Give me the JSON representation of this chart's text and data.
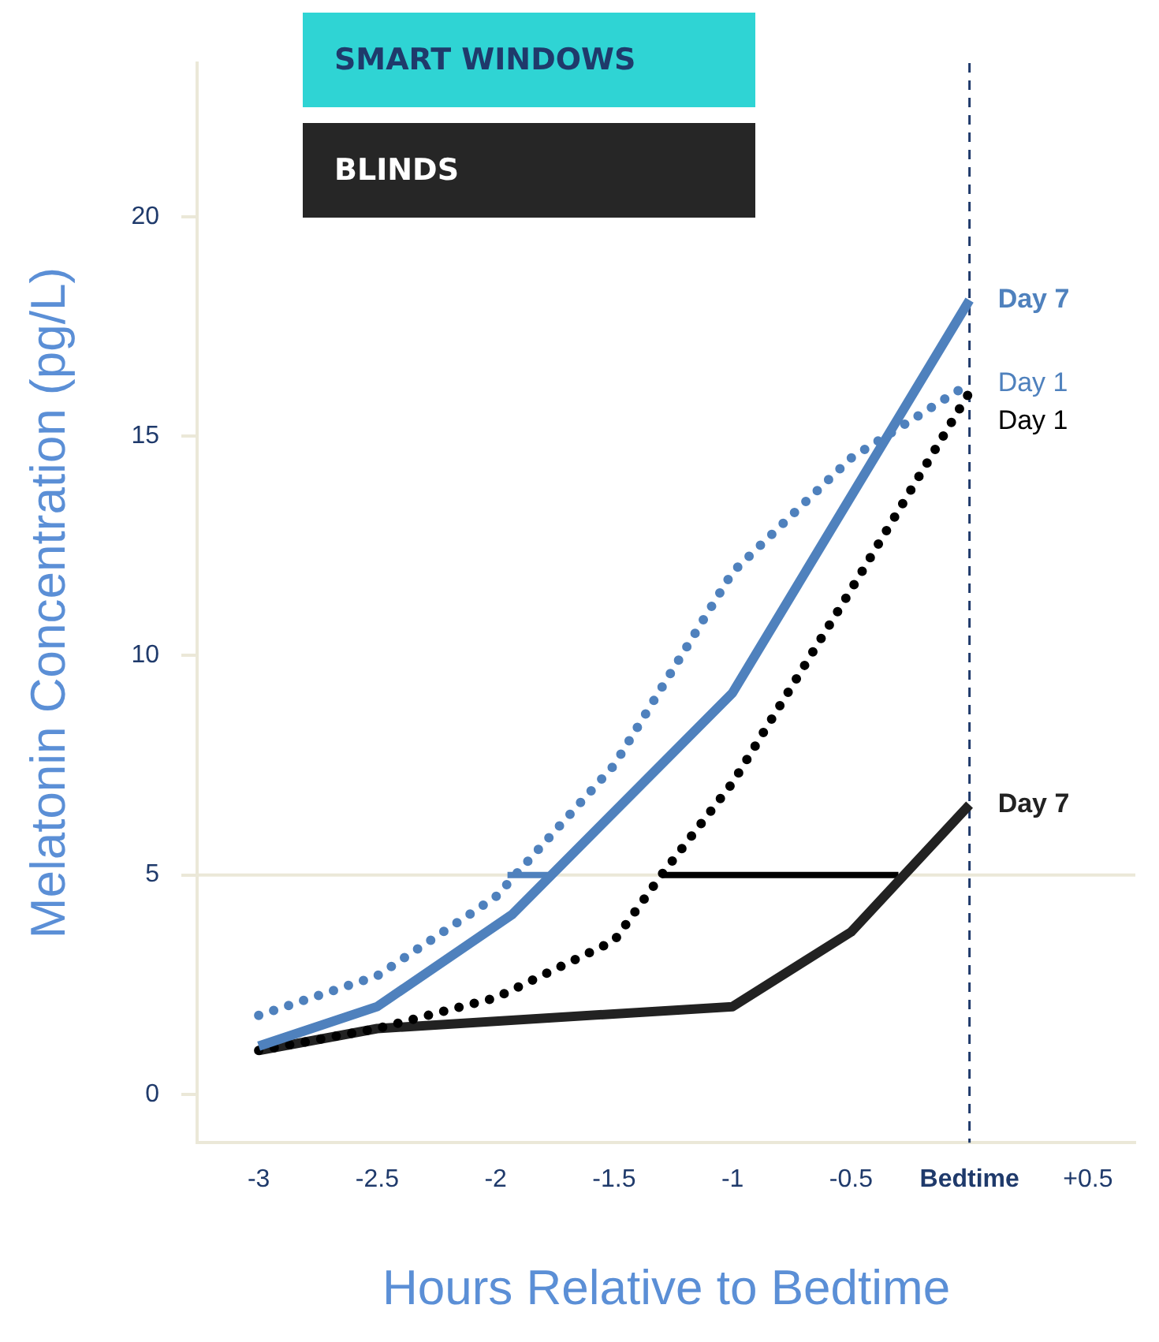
{
  "chart_data": {
    "type": "line",
    "xlabel": "Hours Relative to Bedtime",
    "ylabel": "Melatonin Concentration (pg/L)",
    "annotations": [
      "SMART WINDOWS",
      "BLINDS"
    ],
    "xlim": [
      -3.26,
      0.7
    ],
    "ylim": [
      -1.1,
      23.5
    ],
    "xticks": [
      -3,
      -2.5,
      -2,
      -1.5,
      -1,
      -0.5,
      {
        "value": 0,
        "label": "Bedtime"
      },
      {
        "value": 0.5,
        "label": "+0.5"
      }
    ],
    "yticks": [
      0,
      5,
      10,
      15,
      20
    ],
    "grid": false,
    "legend": false,
    "marker": "none",
    "ref_lines": [
      {
        "axis": "y",
        "value": 5,
        "color": "#ebe8d8",
        "line_style": "solid"
      },
      {
        "axis": "x",
        "value": 0,
        "color": "#1f3a6b",
        "line_style": "dashed"
      }
    ],
    "series": [
      {
        "name": "Day 7",
        "color": "#4f81bd",
        "line_style": "solid",
        "x": [
          -3,
          -2.5,
          -1.93,
          -1,
          0
        ],
        "values": [
          1.1,
          2.0,
          4.1,
          9.15,
          18.1
        ]
      },
      {
        "name": "Day 1",
        "color": "#4f81bd",
        "line_style": "dotted",
        "x": [
          -3,
          -2.5,
          -2,
          -1.5,
          -1,
          -0.5,
          0
        ],
        "values": [
          1.8,
          2.7,
          4.5,
          7.5,
          11.9,
          14.5,
          16.2
        ]
      },
      {
        "name": "Day 1",
        "color": "#000000",
        "line_style": "dotted",
        "x": [
          -3,
          -2.5,
          -2,
          -1.5,
          -1.3,
          -1,
          -0.5,
          0
        ],
        "values": [
          1.0,
          1.5,
          2.2,
          3.5,
          5.0,
          7.1,
          11.5,
          16.0
        ]
      },
      {
        "name": "Day 7",
        "color": "#222222",
        "line_style": "solid",
        "x": [
          -3,
          -2.5,
          -1,
          -0.5,
          0
        ],
        "values": [
          1.0,
          1.5,
          2.0,
          3.7,
          6.6
        ]
      },
      {
        "color": "#4f81bd",
        "line_style": "solid",
        "x": [
          -1.95,
          -1.77
        ],
        "values": [
          5,
          5
        ]
      },
      {
        "color": "#000000",
        "line_style": "solid",
        "x": [
          -1.3,
          -0.3
        ],
        "values": [
          5,
          5
        ]
      }
    ]
  }
}
